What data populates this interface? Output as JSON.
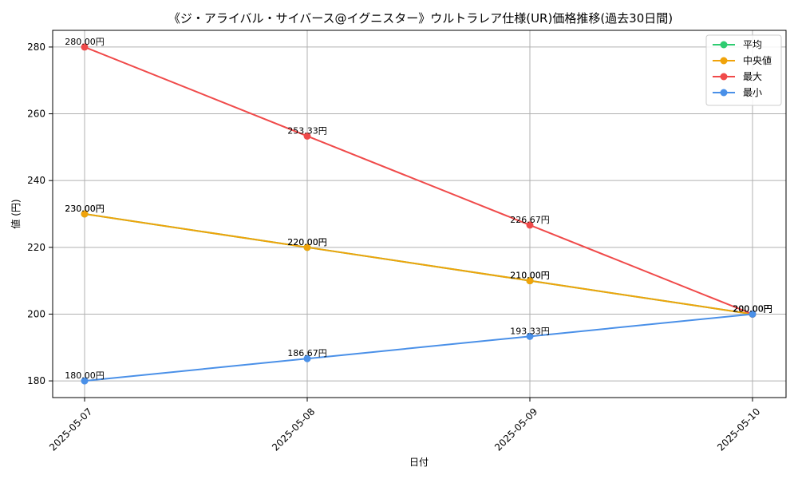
{
  "chart_data": {
    "type": "line",
    "title": "《ジ・アライバル・サイバース@イグニスター》ウルトラレア仕様(UR)価格推移(過去30日間)",
    "xlabel": "日付",
    "ylabel": "値 (円)",
    "x": [
      "2025-05-07",
      "2025-05-08",
      "2025-05-09",
      "2025-05-10"
    ],
    "ylim": [
      175,
      285
    ],
    "yticks": [
      180,
      200,
      220,
      240,
      260,
      280
    ],
    "grid": true,
    "legend_position": "top-right",
    "series": [
      {
        "name": "平均",
        "color": "#2ecc71",
        "values": [
          230.0,
          220.0,
          210.0,
          200.0
        ],
        "labels": [
          "230.00円",
          "220.00円",
          "210.00円",
          "200.00円"
        ]
      },
      {
        "name": "中央値",
        "color": "#f0a30a",
        "values": [
          230.0,
          220.0,
          210.0,
          200.0
        ],
        "labels": [
          "230.00円",
          "220.00円",
          "210.00円",
          "200.00円"
        ]
      },
      {
        "name": "最大",
        "color": "#f04a4a",
        "values": [
          280.0,
          253.33,
          226.67,
          200.0
        ],
        "labels": [
          "280.00円",
          "253.33円",
          "226.67円",
          "200.00円"
        ]
      },
      {
        "name": "最小",
        "color": "#4a90e8",
        "values": [
          180.0,
          186.67,
          193.33,
          200.0
        ],
        "labels": [
          "180.00円",
          "186.67円",
          "193.33円",
          "200.00円"
        ]
      }
    ]
  }
}
